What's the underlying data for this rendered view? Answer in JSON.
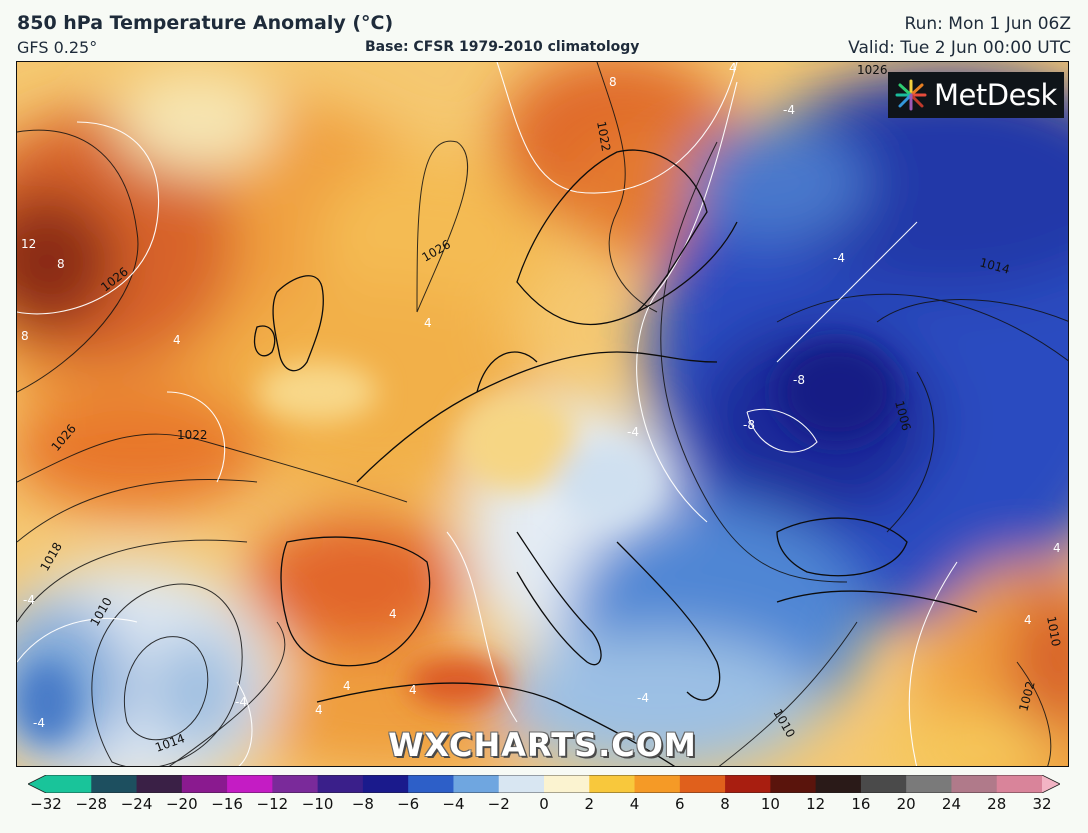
{
  "header": {
    "title": "850 hPa Temperature Anomaly (°C)",
    "model": "GFS 0.25°",
    "base": "Base: CFSR 1979-2010 climatology",
    "run": "Run: Mon 1 Jun 06Z",
    "valid": "Valid: Tue 2 Jun 00:00 UTC"
  },
  "branding": {
    "logo": "MetDesk",
    "watermark": "WXCHARTS.COM"
  },
  "map": {
    "anomaly_labels": [
      "12",
      "8",
      "8",
      "8",
      "4",
      "4",
      "4",
      "4",
      "4",
      "4",
      "4",
      "4",
      "4",
      "-4",
      "-4",
      "-4",
      "-4",
      "-4",
      "-4",
      "-4",
      "-8",
      "-8"
    ],
    "pressure_labels": [
      "1026",
      "1026",
      "1026",
      "1022",
      "1022",
      "1018",
      "1010",
      "1014",
      "1014",
      "1006",
      "1002",
      "1010",
      "1026",
      "1010"
    ]
  },
  "colorbar": {
    "ticks": [
      "−32",
      "−28",
      "−24",
      "−20",
      "−16",
      "−12",
      "−10",
      "−8",
      "−6",
      "−4",
      "−2",
      "0",
      "2",
      "4",
      "6",
      "8",
      "10",
      "12",
      "16",
      "20",
      "24",
      "28",
      "32"
    ],
    "colors": [
      "#19c49a",
      "#1d4f5f",
      "#3a2046",
      "#8a1a8f",
      "#c41cc4",
      "#7a2a9a",
      "#3a1f8a",
      "#1a1a8c",
      "#2d5fc8",
      "#6fa6e0",
      "#d8e6f2",
      "#fbf3d0",
      "#f8c83c",
      "#f59a26",
      "#e0601c",
      "#a81e10",
      "#5a140c",
      "#2a1a18",
      "#4a4a4a",
      "#7a7a7a",
      "#b07a8a",
      "#d9849a",
      "#f2b4c4"
    ]
  }
}
